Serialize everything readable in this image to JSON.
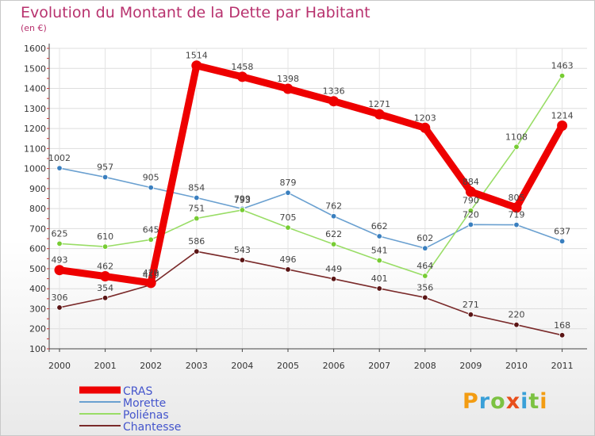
{
  "title": "Evolution du Montant de la Dette par Habitant",
  "subtitle": "(en €)",
  "logo": {
    "text": "Proxiti",
    "letters": [
      {
        "ch": "P",
        "color": "#f39c12"
      },
      {
        "ch": "r",
        "color": "#3aa0d8"
      },
      {
        "ch": "o",
        "color": "#7cc242"
      },
      {
        "ch": "x",
        "color": "#e84e1b"
      },
      {
        "ch": "i",
        "color": "#3aa0d8"
      },
      {
        "ch": "t",
        "color": "#7cc242"
      },
      {
        "ch": "i",
        "color": "#f39c12"
      }
    ]
  },
  "chart_data": {
    "type": "line",
    "title": "Evolution du Montant de la Dette par Habitant",
    "subtitle": "(en €)",
    "x": [
      "2000",
      "2001",
      "2002",
      "2003",
      "2004",
      "2005",
      "2006",
      "2007",
      "2008",
      "2009",
      "2010",
      "2011"
    ],
    "yticks": [
      100,
      200,
      300,
      400,
      500,
      600,
      700,
      800,
      900,
      1000,
      1100,
      1200,
      1300,
      1400,
      1500,
      1600
    ],
    "ylim": [
      100,
      1600
    ],
    "grid": true,
    "legend_position": "bottom-left",
    "series": [
      {
        "name": "CRAS",
        "color": "#ee0000",
        "bold": true,
        "values": [
          493,
          462,
          429,
          1514,
          1458,
          1398,
          1336,
          1271,
          1203,
          884,
          805,
          1214
        ]
      },
      {
        "name": "Morette",
        "color": "#6aa0d0",
        "bold": false,
        "values": [
          1002,
          957,
          905,
          854,
          799,
          879,
          762,
          662,
          602,
          720,
          719,
          637
        ]
      },
      {
        "name": "Poliénas",
        "color": "#99dd66",
        "bold": false,
        "values": [
          625,
          610,
          645,
          751,
          793,
          705,
          622,
          541,
          464,
          790,
          1108,
          1463
        ]
      },
      {
        "name": "Chantesse",
        "color": "#7a2a2a",
        "bold": false,
        "values": [
          306,
          354,
          419,
          586,
          543,
          496,
          449,
          401,
          356,
          271,
          220,
          168
        ]
      }
    ],
    "marker_colors": {
      "CRAS": "#ee0000",
      "Morette": "#3a7fbf",
      "Poliénas": "#77cc33",
      "Chantesse": "#5a1515"
    }
  }
}
